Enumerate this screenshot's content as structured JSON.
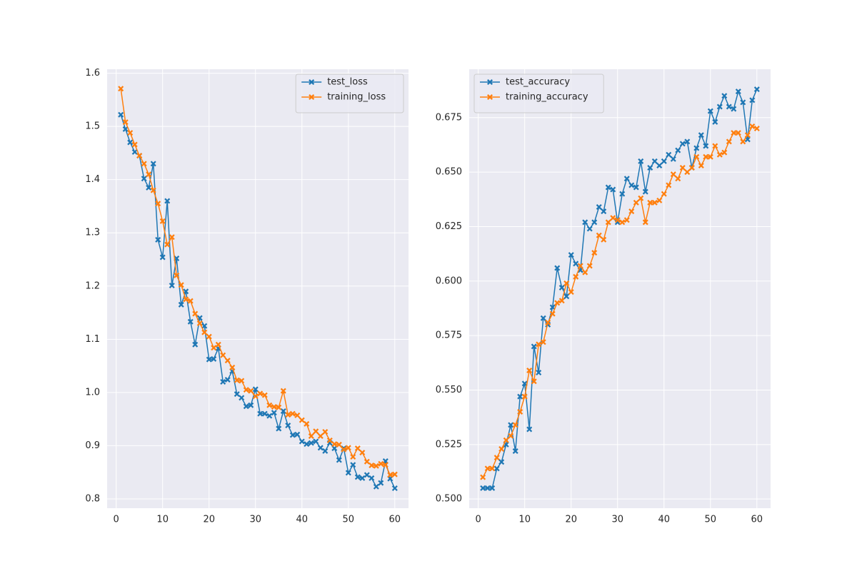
{
  "chart_data": [
    {
      "type": "line",
      "grid": true,
      "legend": "upper right",
      "x": [
        1,
        2,
        3,
        4,
        5,
        6,
        7,
        8,
        9,
        10,
        11,
        12,
        13,
        14,
        15,
        16,
        17,
        18,
        19,
        20,
        21,
        22,
        23,
        24,
        25,
        26,
        27,
        28,
        29,
        30,
        31,
        32,
        33,
        34,
        35,
        36,
        37,
        38,
        39,
        40,
        41,
        42,
        43,
        44,
        45,
        46,
        47,
        48,
        49,
        50,
        51,
        52,
        53,
        54,
        55,
        56,
        57,
        58,
        59,
        60
      ],
      "xlim": [
        -1.95,
        62.95
      ],
      "xticks": [
        0,
        10,
        20,
        30,
        40,
        50,
        60
      ],
      "ylim": [
        0.7825,
        1.6075
      ],
      "yticks": [
        0.8,
        0.9,
        {
          "value": 1.0,
          "label": "1.0"
        },
        1.1,
        1.2,
        1.3,
        1.4,
        1.5,
        1.6
      ],
      "series": [
        {
          "name": "test_loss",
          "color": "#1f77b4",
          "values": [
            1.522,
            1.495,
            1.47,
            1.452,
            1.445,
            1.402,
            1.385,
            1.43,
            1.287,
            1.254,
            1.36,
            1.201,
            1.252,
            1.165,
            1.19,
            1.133,
            1.09,
            1.14,
            1.125,
            1.062,
            1.063,
            1.083,
            1.02,
            1.024,
            1.04,
            0.997,
            0.99,
            0.974,
            0.976,
            1.006,
            0.96,
            0.96,
            0.956,
            0.962,
            0.932,
            0.965,
            0.938,
            0.92,
            0.921,
            0.908,
            0.903,
            0.905,
            0.908,
            0.896,
            0.89,
            0.905,
            0.895,
            0.873,
            0.895,
            0.849,
            0.864,
            0.841,
            0.839,
            0.845,
            0.839,
            0.823,
            0.83,
            0.871,
            0.838,
            0.82
          ]
        },
        {
          "name": "training_loss",
          "color": "#ff7f0e",
          "values": [
            1.571,
            1.508,
            1.488,
            1.466,
            1.445,
            1.43,
            1.41,
            1.38,
            1.355,
            1.322,
            1.278,
            1.292,
            1.22,
            1.202,
            1.175,
            1.172,
            1.148,
            1.13,
            1.113,
            1.105,
            1.084,
            1.09,
            1.07,
            1.06,
            1.047,
            1.023,
            1.022,
            1.005,
            1.003,
            0.993,
            0.998,
            0.995,
            0.976,
            0.973,
            0.972,
            1.003,
            0.958,
            0.96,
            0.957,
            0.948,
            0.941,
            0.918,
            0.927,
            0.918,
            0.926,
            0.91,
            0.903,
            0.902,
            0.893,
            0.896,
            0.879,
            0.895,
            0.887,
            0.87,
            0.863,
            0.862,
            0.866,
            0.864,
            0.845,
            0.846
          ]
        }
      ]
    },
    {
      "type": "line",
      "grid": true,
      "legend": "upper left",
      "x": [
        1,
        2,
        3,
        4,
        5,
        6,
        7,
        8,
        9,
        10,
        11,
        12,
        13,
        14,
        15,
        16,
        17,
        18,
        19,
        20,
        21,
        22,
        23,
        24,
        25,
        26,
        27,
        28,
        29,
        30,
        31,
        32,
        33,
        34,
        35,
        36,
        37,
        38,
        39,
        40,
        41,
        42,
        43,
        44,
        45,
        46,
        47,
        48,
        49,
        50,
        51,
        52,
        53,
        54,
        55,
        56,
        57,
        58,
        59,
        60
      ],
      "xlim": [
        -1.95,
        62.95
      ],
      "xticks": [
        0,
        10,
        20,
        30,
        40,
        50,
        60
      ],
      "ylim": [
        0.4958,
        0.6972
      ],
      "yticks": [
        {
          "value": 0.5,
          "label": "0.500"
        },
        0.525,
        {
          "value": 0.55,
          "label": "0.550"
        },
        0.575,
        {
          "value": 0.6,
          "label": "0.600"
        },
        0.625,
        {
          "value": 0.65,
          "label": "0.650"
        },
        0.675
      ],
      "series": [
        {
          "name": "test_accuracy",
          "color": "#1f77b4",
          "values": [
            0.505,
            0.505,
            0.505,
            0.514,
            0.517,
            0.525,
            0.534,
            0.522,
            0.547,
            0.553,
            0.532,
            0.57,
            0.558,
            0.583,
            0.58,
            0.588,
            0.606,
            0.597,
            0.593,
            0.612,
            0.608,
            0.605,
            0.627,
            0.624,
            0.627,
            0.634,
            0.632,
            0.643,
            0.642,
            0.627,
            0.64,
            0.647,
            0.644,
            0.643,
            0.655,
            0.641,
            0.652,
            0.655,
            0.653,
            0.655,
            0.658,
            0.656,
            0.66,
            0.663,
            0.664,
            0.652,
            0.661,
            0.667,
            0.662,
            0.678,
            0.673,
            0.68,
            0.685,
            0.68,
            0.679,
            0.687,
            0.682,
            0.665,
            0.683,
            0.688
          ]
        },
        {
          "name": "training_accuracy",
          "color": "#ff7f0e",
          "values": [
            0.51,
            0.514,
            0.514,
            0.519,
            0.523,
            0.527,
            0.529,
            0.534,
            0.54,
            0.547,
            0.559,
            0.554,
            0.571,
            0.572,
            0.581,
            0.585,
            0.59,
            0.591,
            0.599,
            0.595,
            0.602,
            0.607,
            0.604,
            0.607,
            0.613,
            0.621,
            0.619,
            0.627,
            0.629,
            0.628,
            0.627,
            0.628,
            0.632,
            0.636,
            0.638,
            0.627,
            0.636,
            0.636,
            0.637,
            0.64,
            0.644,
            0.649,
            0.647,
            0.652,
            0.65,
            0.652,
            0.657,
            0.653,
            0.657,
            0.657,
            0.662,
            0.658,
            0.659,
            0.664,
            0.668,
            0.668,
            0.664,
            0.667,
            0.671,
            0.67
          ]
        }
      ]
    }
  ]
}
